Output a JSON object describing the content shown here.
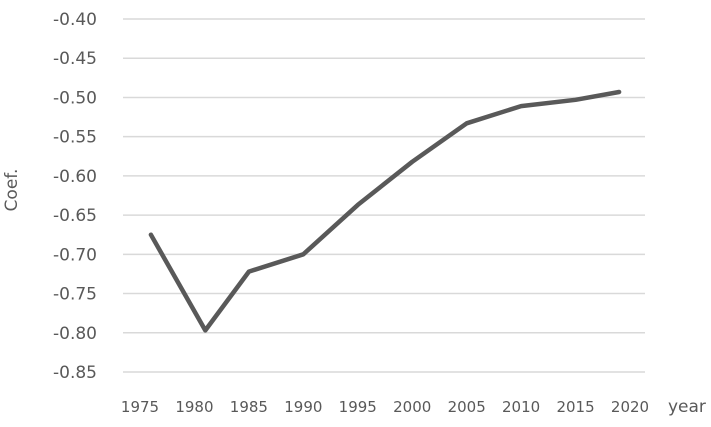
{
  "chart_data": {
    "type": "line",
    "xlabel": "year",
    "ylabel": "Coef.",
    "ylim": [
      -0.85,
      -0.4
    ],
    "yticks": [
      "-0.40",
      "-0.45",
      "-0.50",
      "-0.55",
      "-0.60",
      "-0.65",
      "-0.70",
      "-0.75",
      "-0.80",
      "-0.85"
    ],
    "xticks": [
      "1975",
      "1980",
      "1985",
      "1990",
      "1995",
      "2000",
      "2005",
      "2010",
      "2015",
      "2020"
    ],
    "grid": true,
    "series": [
      {
        "x": [
          1976,
          1981,
          1985,
          1990,
          1995,
          2000,
          2005,
          2010,
          2015,
          2019
        ],
        "values": [
          -0.675,
          -0.797,
          -0.722,
          -0.7,
          -0.637,
          -0.582,
          -0.533,
          -0.511,
          -0.503,
          -0.493
        ]
      }
    ],
    "colors": {
      "line": "#595959",
      "grid": "#d9d9d9",
      "text": "#595959"
    }
  }
}
